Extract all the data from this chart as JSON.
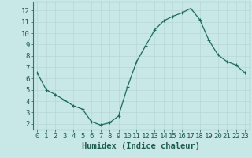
{
  "x": [
    0,
    1,
    2,
    3,
    4,
    5,
    6,
    7,
    8,
    9,
    10,
    11,
    12,
    13,
    14,
    15,
    16,
    17,
    18,
    19,
    20,
    21,
    22,
    23
  ],
  "y": [
    6.5,
    5.0,
    4.6,
    4.1,
    3.6,
    3.3,
    2.2,
    1.9,
    2.1,
    2.7,
    5.3,
    7.5,
    8.9,
    10.3,
    11.1,
    11.5,
    11.8,
    12.2,
    11.2,
    9.4,
    8.1,
    7.5,
    7.2,
    6.5
  ],
  "line_color": "#1a6b5a",
  "marker": "+",
  "marker_size": 3,
  "bg_color": "#c8e8e8",
  "grid_color": "#b8d8d8",
  "xlabel": "Humidex (Indice chaleur)",
  "ylabel_ticks": [
    2,
    3,
    4,
    5,
    6,
    7,
    8,
    9,
    10,
    11,
    12
  ],
  "xlim": [
    -0.5,
    23.5
  ],
  "ylim": [
    1.5,
    12.8
  ],
  "xlabel_fontsize": 7.5,
  "tick_fontsize": 6.5,
  "spine_color": "#2a7a6a",
  "axis_tick_color": "#1a5a4a",
  "line_width": 0.9,
  "marker_edge_width": 0.8
}
